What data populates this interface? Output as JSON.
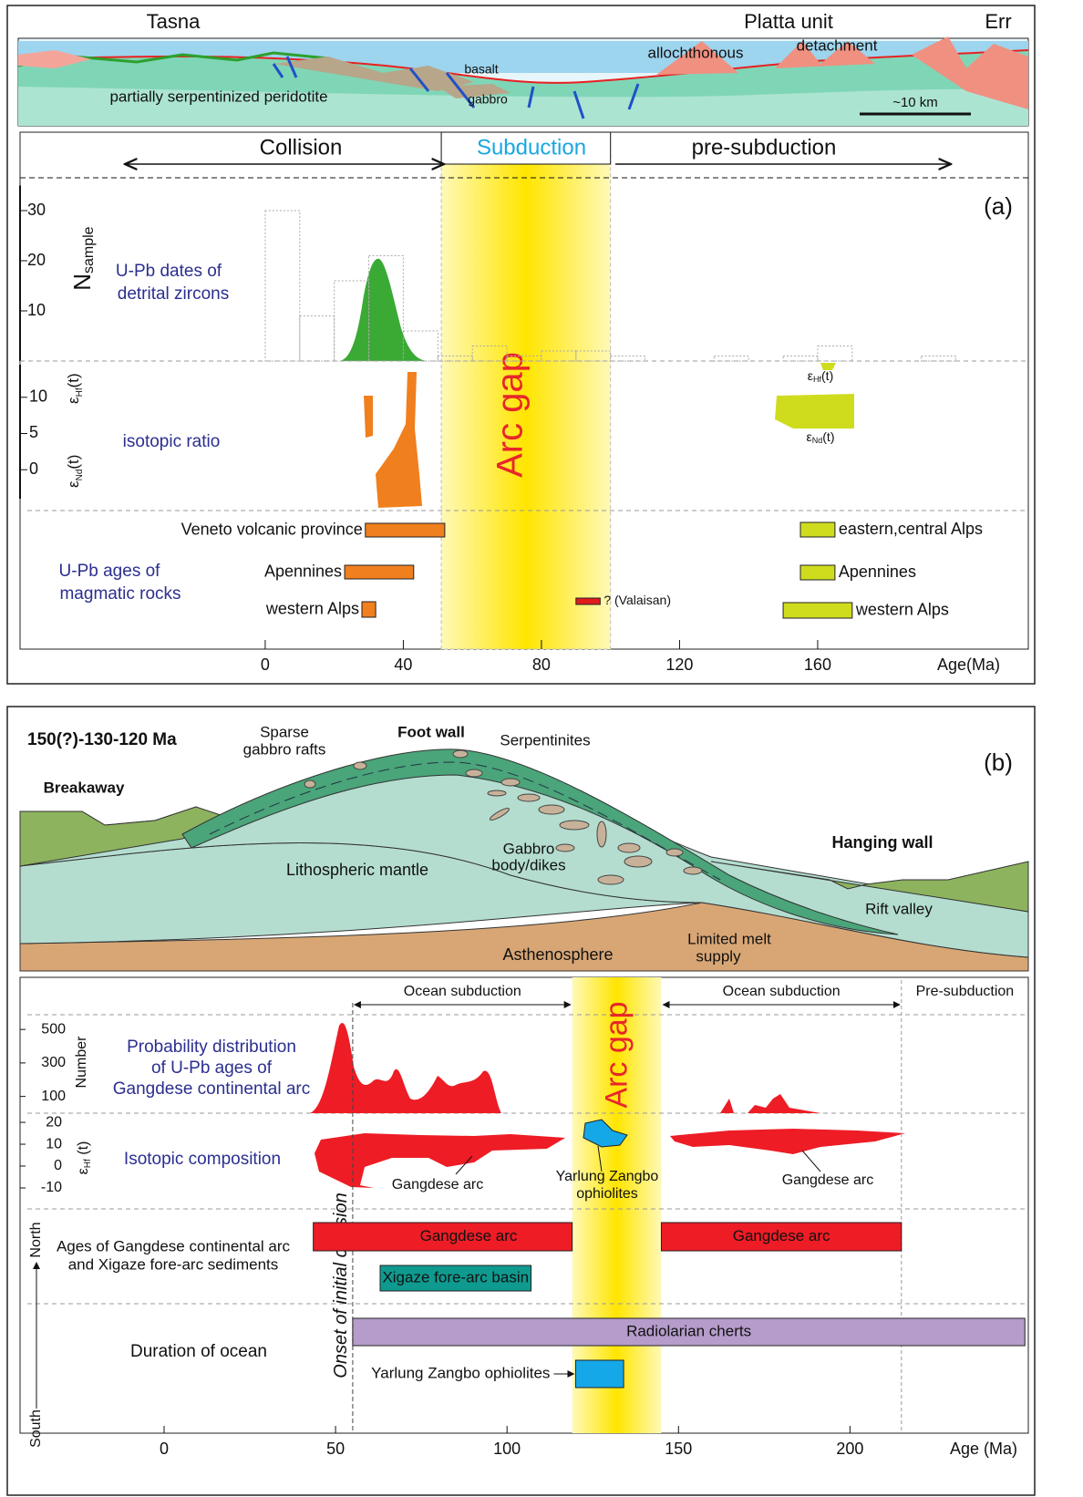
{
  "panel_a": {
    "cross_section": {
      "tasna": "Tasna",
      "platta": "Platta unit",
      "err": "Err",
      "allochthonous": "allochthonous",
      "detachment": "detachment",
      "basalt": "basalt",
      "gabbro": "gabbro",
      "peridotite": "partially serpentinized peridotite",
      "scale": "~10 km"
    },
    "phases": {
      "collision": "Collision",
      "subduction": "Subduction",
      "pre_subduction": "pre-subduction"
    },
    "label": "(a)",
    "arc_gap": {
      "label": "Arc gap",
      "range": [
        51,
        100
      ]
    },
    "xlim": [
      -71,
      221
    ],
    "xticks": [
      0,
      40,
      80,
      120,
      160
    ],
    "x_label": "Age(Ma)",
    "detrital": {
      "label": [
        "U-Pb dates of",
        "detrital zircons"
      ],
      "y_label": "N",
      "y_label_sub": "sample",
      "ylim": [
        0,
        35
      ],
      "yticks": [
        10,
        20,
        30
      ],
      "bins": [
        0,
        10,
        20,
        30,
        40,
        50,
        60,
        70,
        80,
        90,
        100,
        110,
        120,
        130,
        140,
        150,
        160,
        170,
        180,
        190,
        200
      ],
      "counts": [
        30,
        9,
        16,
        21,
        6,
        1,
        3,
        1,
        2,
        2,
        1,
        0,
        0,
        1,
        0,
        1,
        3,
        0,
        0,
        1
      ]
    },
    "isotopic": {
      "label": "isotopic ratio",
      "ylim": [
        -4,
        14.5
      ],
      "yticks": [
        0,
        5,
        10
      ],
      "hf": {
        "symbol": "ε",
        "sub": "Hf",
        "suffix": "(t)"
      },
      "nd": {
        "symbol": "ε",
        "sub": "Nd",
        "suffix": "(t)"
      }
    },
    "magmatic": {
      "label": [
        "U-Pb ages of",
        "magmatic rocks"
      ],
      "bars": [
        {
          "label": "Veneto volcanic province",
          "range": [
            29,
            52
          ],
          "color": "#f07f1e"
        },
        {
          "label": "Apennines",
          "range": [
            23,
            43
          ],
          "color": "#f07f1e"
        },
        {
          "label": "western Alps",
          "range": [
            28,
            32
          ],
          "color": "#f07f1e"
        },
        {
          "label": "? (Valaisan)",
          "range": [
            90,
            97
          ],
          "color": "#e31a1c"
        },
        {
          "label": "eastern,central Alps",
          "range": [
            155,
            165
          ],
          "color": "#cfdc1e"
        },
        {
          "label": "Apennines",
          "range": [
            155,
            165
          ],
          "color": "#cfdc1e"
        },
        {
          "label": "western Alps",
          "range": [
            150,
            170
          ],
          "color": "#cfdc1e"
        }
      ]
    }
  },
  "panel_b": {
    "stage": "150(?)-130-120 Ma",
    "label": "(b)",
    "cross_section": {
      "rafts": [
        "Sparse",
        "gabbro rafts"
      ],
      "foot_wall": "Foot wall",
      "serpentinites": "Serpentinites",
      "breakaway": "Breakaway",
      "gabbro": [
        "Gabbro",
        "body/dikes"
      ],
      "mantle": "Lithospheric mantle",
      "hanging_wall": "Hanging wall",
      "rift": "Rift valley",
      "melt": [
        "Limited melt",
        "supply"
      ],
      "asthenosphere": "Asthenosphere"
    },
    "phases": [
      {
        "label": "Ocean subduction",
        "range": [
          55,
          119
        ]
      },
      {
        "label": "Ocean subduction",
        "range": [
          145,
          215
        ]
      },
      {
        "label": "Pre-subduction",
        "range": [
          215,
          252
        ]
      }
    ],
    "arc_gap": {
      "label": "Arc gap",
      "range": [
        119,
        145
      ]
    },
    "onset": {
      "label": "Onset of initial collision",
      "age": 55
    },
    "xlim": [
      -42,
      252
    ],
    "xticks": [
      0,
      50,
      100,
      150,
      200
    ],
    "x_label": "Age (Ma)",
    "probability": {
      "label": [
        "Probability distribution",
        "of U-Pb ages of",
        "Gangdese continental arc"
      ],
      "y_label": "Number",
      "ylim": [
        0,
        588
      ],
      "yticks": [
        100,
        300,
        500
      ]
    },
    "isotopic": {
      "label": "Isotopic composition",
      "ylim": [
        -19.6,
        24.2
      ],
      "yticks": [
        -10,
        0,
        10,
        20
      ],
      "y_label": {
        "symbol": "ε",
        "sub": "Hf",
        "suffix": " (t)"
      },
      "annotations": {
        "gangdese_left": "Gangdese arc",
        "ophiolites": [
          "Yarlung Zangbo",
          "ophiolites"
        ],
        "gangdese_right": "Gangdese arc"
      }
    },
    "arc_ages": {
      "label": [
        "Ages of Gangdese continental arc",
        "and Xigaze fore-arc sediments"
      ],
      "north": "North",
      "bars": [
        {
          "label": "Gangdese arc",
          "range": [
            43.5,
            119
          ],
          "color": "#ee1c25"
        },
        {
          "label": "Gangdese arc",
          "range": [
            145,
            215
          ],
          "color": "#ee1c25"
        },
        {
          "label": "Xigaze fore-arc basin",
          "range": [
            63,
            107
          ],
          "color": "#0f9a8f"
        }
      ]
    },
    "ocean": {
      "label": "Duration of ocean",
      "south": "South",
      "bars": [
        {
          "label": "Radiolarian cherts",
          "range": [
            55,
            251
          ],
          "color": "#b59ccb"
        },
        {
          "label": "Yarlung Zangbo ophiolites",
          "range": [
            120,
            134
          ],
          "color": "#15a8e8"
        }
      ]
    }
  }
}
